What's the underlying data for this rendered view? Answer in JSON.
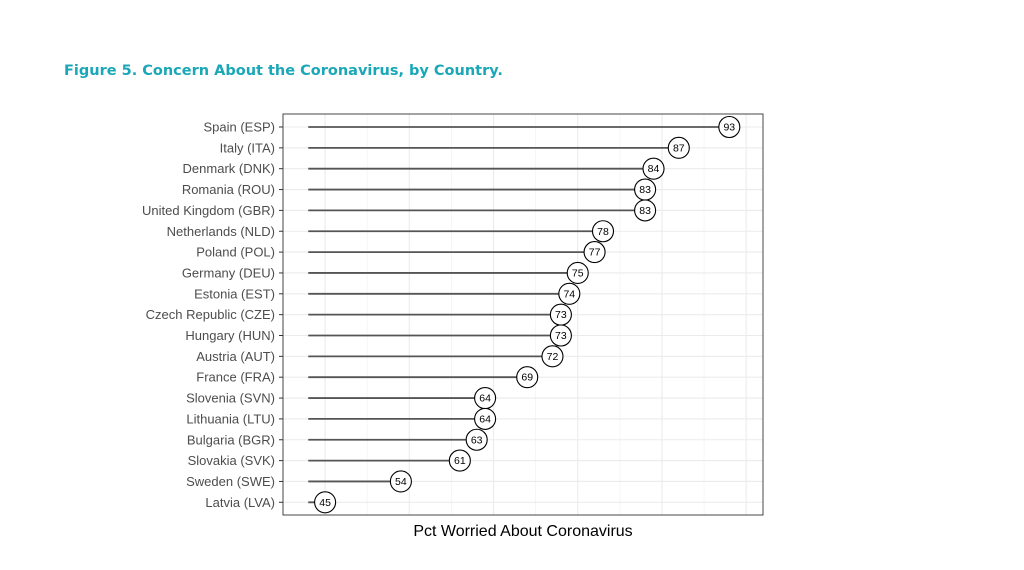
{
  "figure_title": "Figure 5.  Concern About the Coronavirus, by Country.",
  "colors": {
    "title": "#1aa7b7",
    "stem": "#555555",
    "grid": "#ebebeb",
    "panel_border": "#333333",
    "dot_fill": "#ffffff",
    "dot_stroke": "#000000",
    "label_text": "#4d4d4d"
  },
  "chart_data": {
    "type": "lollipop",
    "orientation": "horizontal",
    "categories": [
      "Spain (ESP)",
      "Italy (ITA)",
      "Denmark (DNK)",
      "Romania (ROU)",
      "United Kingdom (GBR)",
      "Netherlands (NLD)",
      "Poland (POL)",
      "Germany (DEU)",
      "Estonia (EST)",
      "Czech Republic (CZE)",
      "Hungary (HUN)",
      "Austria (AUT)",
      "France (FRA)",
      "Slovenia (SVN)",
      "Lithuania (LTU)",
      "Bulgaria (BGR)",
      "Slovakia (SVK)",
      "Sweden (SWE)",
      "Latvia (LVA)"
    ],
    "values": [
      93,
      87,
      84,
      83,
      83,
      78,
      77,
      75,
      74,
      73,
      73,
      72,
      69,
      64,
      64,
      63,
      61,
      54,
      45
    ],
    "xlabel": "Pct Worried About Coronavirus",
    "ylabel": "",
    "xlim": [
      40,
      97
    ],
    "stem_base": 43,
    "grid": true,
    "x_tick_labels_shown": false
  }
}
